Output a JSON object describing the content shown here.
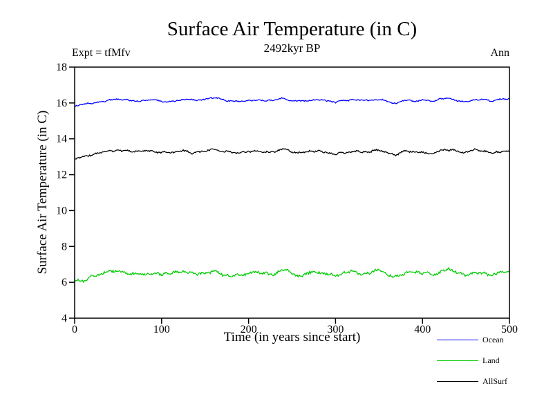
{
  "chart_data": {
    "type": "line",
    "title": "Surface Air Temperature (in C)",
    "subtitle": "2492kyr BP",
    "xlabel": "Time (in years since start)",
    "ylabel": "Surface Air Temperature (in C)",
    "xlim": [
      0,
      500
    ],
    "ylim": [
      4,
      18
    ],
    "xticks": [
      0,
      100,
      200,
      300,
      400,
      500
    ],
    "yticks": [
      4,
      6,
      8,
      10,
      12,
      14,
      16,
      18
    ],
    "grid": false,
    "legend_position": "bottom-right",
    "annotations": [
      {
        "text": "Expt = tfMfv",
        "position": "top-left"
      },
      {
        "text": "Ann",
        "position": "top-right"
      }
    ],
    "x": [
      0,
      10,
      20,
      30,
      40,
      50,
      60,
      70,
      80,
      90,
      100,
      110,
      120,
      130,
      140,
      150,
      160,
      170,
      180,
      190,
      200,
      210,
      220,
      230,
      240,
      250,
      260,
      270,
      280,
      290,
      300,
      310,
      320,
      330,
      340,
      350,
      360,
      370,
      380,
      390,
      400,
      410,
      420,
      430,
      440,
      450,
      460,
      470,
      480,
      490,
      500
    ],
    "series": [
      {
        "name": "Ocean",
        "color": "#0000ff",
        "mean": 16.15,
        "jitter": 0.06,
        "values": [
          15.78,
          15.92,
          16.0,
          16.08,
          16.15,
          16.2,
          16.15,
          16.1,
          16.18,
          16.15,
          16.1,
          16.05,
          16.18,
          16.25,
          16.1,
          16.2,
          16.28,
          16.18,
          16.12,
          16.1,
          16.2,
          16.15,
          16.1,
          16.18,
          16.25,
          16.15,
          16.08,
          16.15,
          16.2,
          16.1,
          16.05,
          16.15,
          16.2,
          16.12,
          16.15,
          16.2,
          16.1,
          16.0,
          16.18,
          16.1,
          16.15,
          16.1,
          16.2,
          16.3,
          16.15,
          16.1,
          16.2,
          16.15,
          16.1,
          16.18,
          16.22
        ]
      },
      {
        "name": "Land",
        "color": "#00cc00",
        "mean": 6.5,
        "jitter": 0.13,
        "values": [
          6.05,
          6.15,
          6.3,
          6.45,
          6.55,
          6.6,
          6.5,
          6.45,
          6.55,
          6.5,
          6.4,
          6.5,
          6.6,
          6.5,
          6.45,
          6.55,
          6.65,
          6.5,
          6.42,
          6.4,
          6.55,
          6.6,
          6.45,
          6.5,
          6.7,
          6.55,
          6.4,
          6.5,
          6.6,
          6.45,
          6.35,
          6.5,
          6.6,
          6.45,
          6.55,
          6.65,
          6.5,
          6.3,
          6.55,
          6.6,
          6.5,
          6.45,
          6.6,
          6.7,
          6.55,
          6.45,
          6.62,
          6.55,
          6.45,
          6.6,
          6.65
        ]
      },
      {
        "name": "AllSurf",
        "color": "#000000",
        "mean": 13.27,
        "jitter": 0.08,
        "values": [
          12.85,
          13.0,
          13.12,
          13.22,
          13.3,
          13.35,
          13.3,
          13.25,
          13.32,
          13.28,
          13.2,
          13.28,
          13.35,
          13.25,
          13.2,
          13.3,
          13.38,
          13.3,
          13.22,
          13.2,
          13.3,
          13.35,
          13.25,
          13.3,
          13.4,
          13.3,
          13.2,
          13.3,
          13.35,
          13.25,
          13.15,
          13.25,
          13.32,
          13.2,
          13.3,
          13.35,
          13.25,
          13.1,
          13.3,
          13.35,
          13.25,
          13.2,
          13.3,
          13.4,
          13.3,
          13.2,
          13.35,
          13.3,
          13.2,
          13.28,
          13.35
        ]
      }
    ]
  }
}
